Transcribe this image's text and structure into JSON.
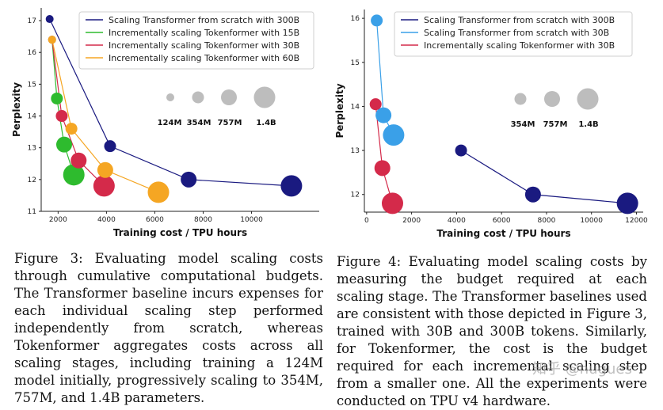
{
  "figure3": {
    "caption": "Figure 3: Evaluating model scaling costs through cumulative computational budgets. The Transformer baseline incurs expenses for each individual scaling step performed independently from scratch, whereas Tokenformer aggregates costs across all scaling stages, including training a 124M model initially, progressively scaling to 354M, 757M, and 1.4B parameters."
  },
  "figure4": {
    "caption": "Figure 4: Evaluating model scaling costs by measuring the budget required at each scaling stage. The Transformer baselines used are consistent with those depicted in Figure 3, trained with 30B and 300B tokens. Similarly, for Tokenformer, the cost is the budget required for each incremental scaling step from a smaller one. All the experiments were conducted on TPU v4 hardware."
  },
  "watermark": "知乎 @hugues",
  "chart_data": [
    {
      "type": "scatter",
      "title": "",
      "xlabel": "Training cost / TPU hours",
      "ylabel": "Perplexity",
      "xlim": [
        1300,
        12800
      ],
      "ylim": [
        11,
        17.4
      ],
      "xticks": [
        2000,
        4000,
        6000,
        8000,
        10000
      ],
      "yticks": [
        11,
        12,
        13,
        14,
        15,
        16,
        17
      ],
      "legend_position": "top-right",
      "size_legend": [
        "124M",
        "354M",
        "757M",
        "1.4B"
      ],
      "series": [
        {
          "name": "Scaling Transformer from scratch with 300B",
          "color": "#1a1a80",
          "points": [
            {
              "x": 1650,
              "y": 17.05,
              "model": "124M"
            },
            {
              "x": 4150,
              "y": 13.05,
              "model": "354M"
            },
            {
              "x": 7400,
              "y": 12.0,
              "model": "757M"
            },
            {
              "x": 11650,
              "y": 11.8,
              "model": "1.4B"
            }
          ]
        },
        {
          "name": "Incrementally scaling Tokenformer with 15B",
          "color": "#2ebb2e",
          "points": [
            {
              "x": 1750,
              "y": 16.4,
              "model": "124M"
            },
            {
              "x": 1950,
              "y": 14.55,
              "model": "354M"
            },
            {
              "x": 2250,
              "y": 13.1,
              "model": "757M"
            },
            {
              "x": 2650,
              "y": 12.15,
              "model": "1.4B"
            }
          ]
        },
        {
          "name": "Incrementally scaling Tokenformer with 30B",
          "color": "#d42a4a",
          "points": [
            {
              "x": 1750,
              "y": 16.4,
              "model": "124M"
            },
            {
              "x": 2150,
              "y": 14.0,
              "model": "354M"
            },
            {
              "x": 2850,
              "y": 12.6,
              "model": "757M"
            },
            {
              "x": 3900,
              "y": 11.8,
              "model": "1.4B"
            }
          ]
        },
        {
          "name": "Incrementally scaling Tokenformer with 60B",
          "color": "#f5a623",
          "points": [
            {
              "x": 1750,
              "y": 16.4,
              "model": "124M"
            },
            {
              "x": 2550,
              "y": 13.6,
              "model": "354M"
            },
            {
              "x": 3950,
              "y": 12.3,
              "model": "757M"
            },
            {
              "x": 6150,
              "y": 11.6,
              "model": "1.4B"
            }
          ]
        }
      ]
    },
    {
      "type": "scatter",
      "title": "",
      "xlabel": "Training cost / TPU hours",
      "ylabel": "Perplexity",
      "xlim": [
        -100,
        12300
      ],
      "ylim": [
        11.6,
        16.2
      ],
      "xticks": [
        0,
        2000,
        4000,
        6000,
        8000,
        10000,
        12000
      ],
      "yticks": [
        12,
        13,
        14,
        15,
        16
      ],
      "legend_position": "top-right",
      "size_legend": [
        "354M",
        "757M",
        "1.4B"
      ],
      "series": [
        {
          "name": "Scaling Transformer from scratch with 300B",
          "color": "#1a1a80",
          "points": [
            {
              "x": 4200,
              "y": 13.0,
              "model": "354M"
            },
            {
              "x": 7400,
              "y": 12.0,
              "model": "757M"
            },
            {
              "x": 11600,
              "y": 11.8,
              "model": "1.4B"
            }
          ]
        },
        {
          "name": "Scaling Transformer from scratch with 30B",
          "color": "#3aa0e8",
          "points": [
            {
              "x": 450,
              "y": 15.95,
              "model": "354M"
            },
            {
              "x": 750,
              "y": 13.8,
              "model": "757M"
            },
            {
              "x": 1200,
              "y": 13.35,
              "model": "1.4B"
            }
          ]
        },
        {
          "name": "Incrementally scaling Tokenformer with 30B",
          "color": "#d42a4a",
          "points": [
            {
              "x": 400,
              "y": 14.05,
              "model": "354M"
            },
            {
              "x": 700,
              "y": 12.6,
              "model": "757M"
            },
            {
              "x": 1150,
              "y": 11.8,
              "model": "1.4B"
            }
          ]
        }
      ]
    }
  ]
}
